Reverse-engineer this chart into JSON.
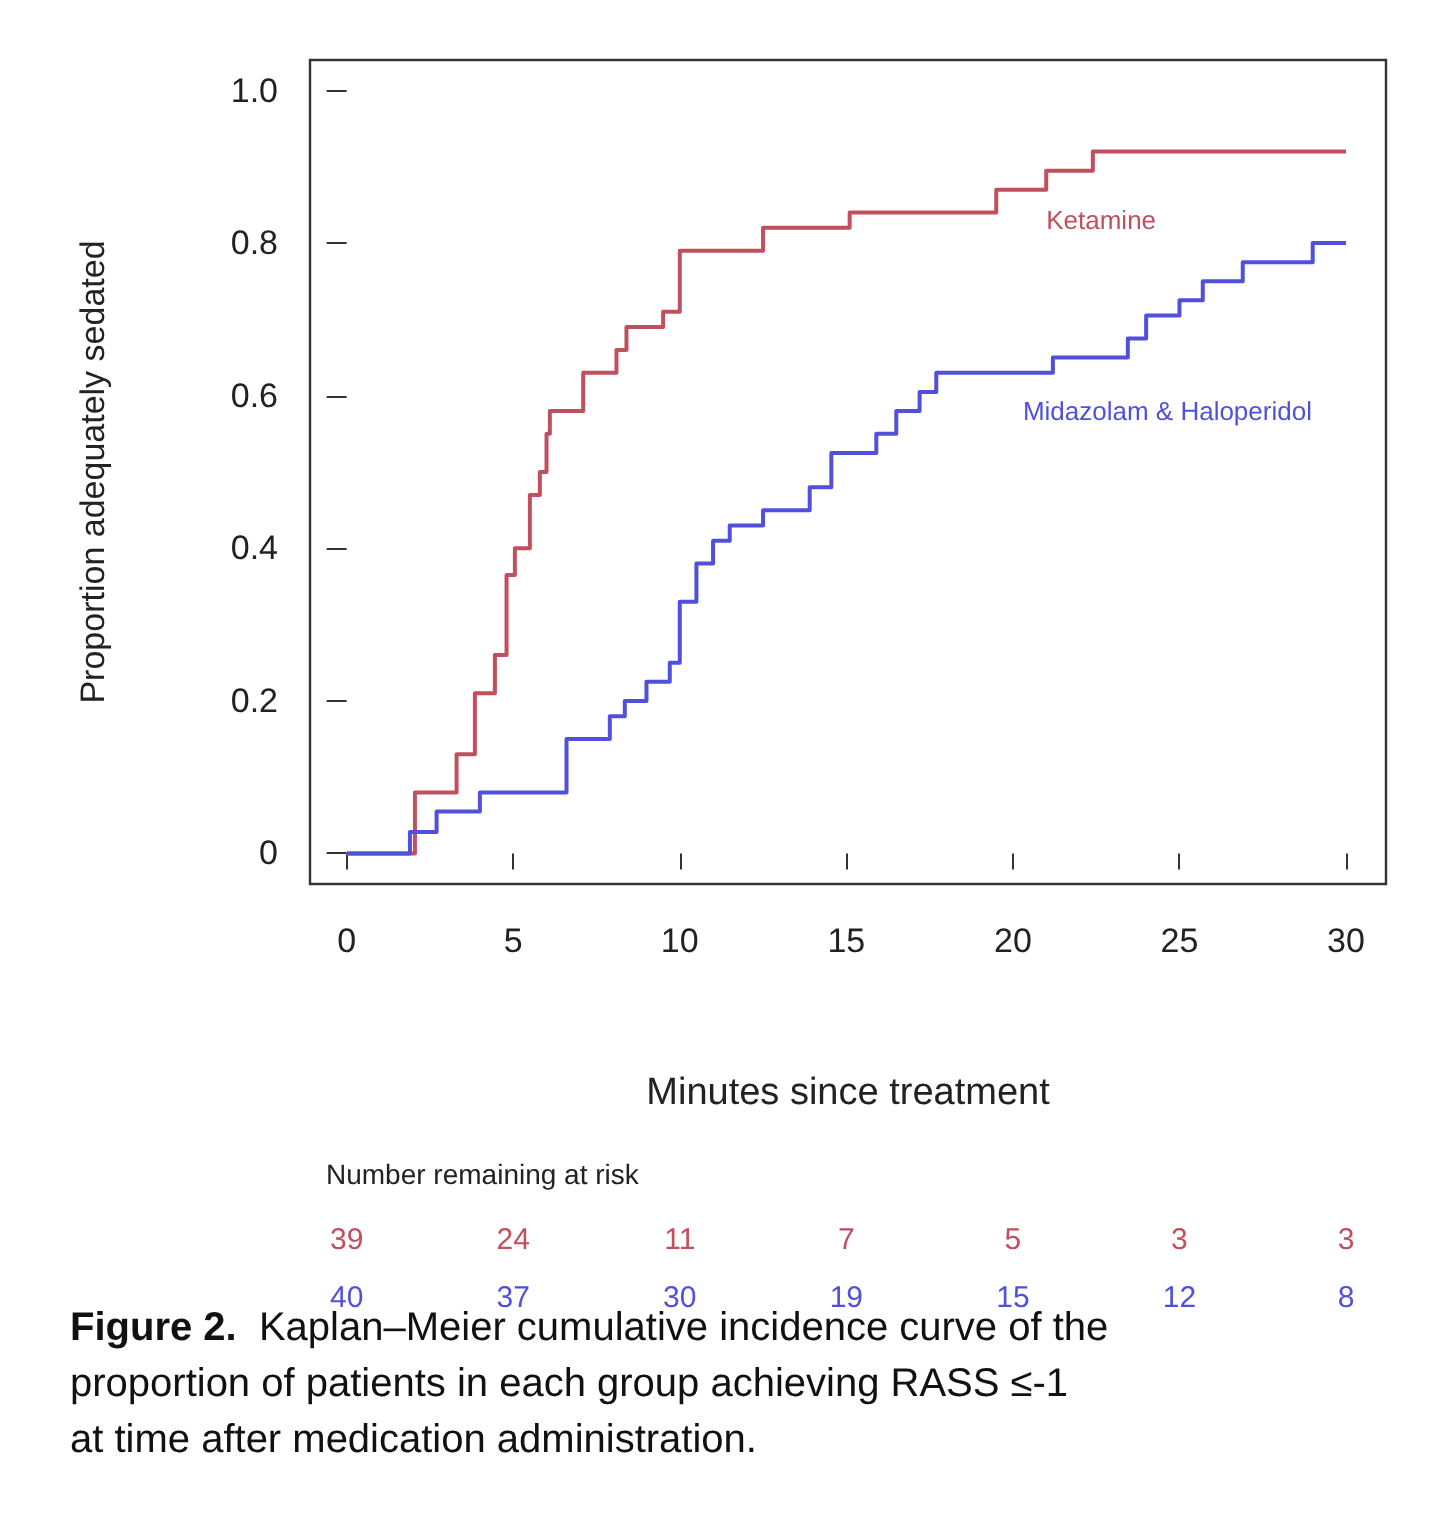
{
  "chart_data": {
    "type": "step",
    "xlabel": "Minutes since treatment",
    "ylabel": "Proportion adequately sedated",
    "xlim": [
      -1.1,
      31.2
    ],
    "ylim": [
      -0.04,
      1.04
    ],
    "xticks": [
      0,
      5,
      10,
      15,
      20,
      25,
      30
    ],
    "yticks": [
      0,
      0.2,
      0.4,
      0.6,
      0.8,
      {
        "value": 1,
        "label": "1.0"
      }
    ],
    "grid": false,
    "legend": false,
    "marker": "none",
    "line_style": "solid",
    "series": [
      {
        "name": "Ketamine",
        "color": "#c0505e",
        "x": [
          0,
          2.05,
          3.3,
          3.85,
          4.45,
          4.8,
          5.05,
          5.5,
          5.8,
          6.0,
          6.1,
          7.1,
          8.1,
          8.4,
          9.5,
          10.0,
          12.5,
          15.1,
          19.5,
          21.0,
          22.4,
          30
        ],
        "values": [
          0,
          0.08,
          0.13,
          0.21,
          0.26,
          0.365,
          0.4,
          0.47,
          0.5,
          0.55,
          0.58,
          0.63,
          0.66,
          0.69,
          0.71,
          0.79,
          0.82,
          0.84,
          0.87,
          0.895,
          0.92,
          0.92
        ]
      },
      {
        "name": "Midazolam & Haloperidol",
        "color": "#5050dc",
        "x": [
          0,
          1.9,
          2.7,
          4.0,
          6.6,
          7.9,
          8.35,
          9.0,
          9.7,
          10.0,
          10.5,
          11.0,
          11.5,
          12.5,
          13.9,
          14.55,
          15.9,
          16.5,
          17.2,
          17.7,
          21.2,
          23.45,
          24.0,
          25.0,
          25.7,
          26.9,
          29.0,
          30
        ],
        "values": [
          0,
          0.028,
          0.055,
          0.08,
          0.15,
          0.18,
          0.2,
          0.225,
          0.25,
          0.33,
          0.38,
          0.41,
          0.43,
          0.45,
          0.48,
          0.525,
          0.55,
          0.58,
          0.605,
          0.63,
          0.65,
          0.675,
          0.705,
          0.725,
          0.75,
          0.775,
          0.8,
          0.8
        ]
      }
    ],
    "annotations": [
      "Number remaining at risk",
      "39",
      "24",
      "11",
      "7",
      "5",
      "3",
      "3",
      "40",
      "37",
      "30",
      "19",
      "15",
      "12",
      "8",
      "Figure 2.",
      "Kaplan–Meier cumulative incidence curve of the proportion of patients in each group achieving RASS ≤-1 at time after medication administration."
    ]
  }
}
